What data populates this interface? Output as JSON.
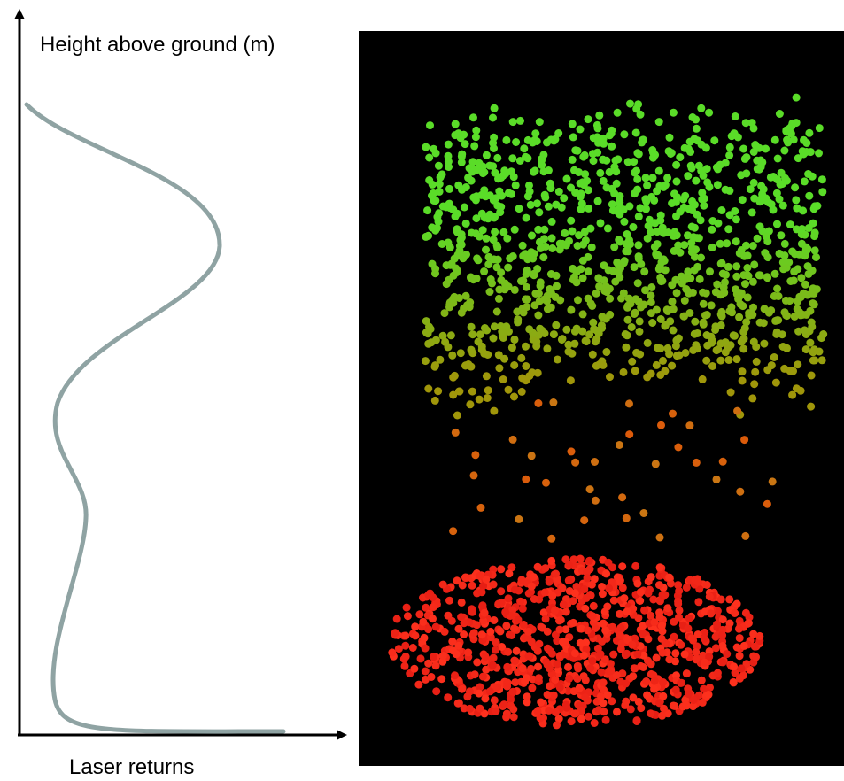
{
  "y_axis_label": "Height above ground (m)",
  "x_axis_label": "Laser returns"
}
